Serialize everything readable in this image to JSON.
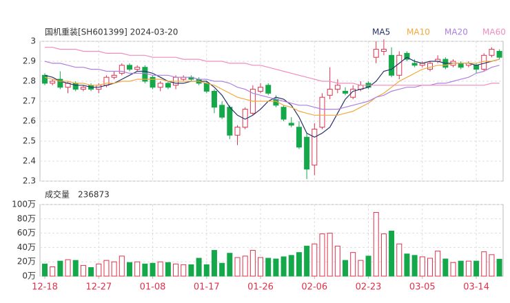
{
  "chart_data": [
    {
      "type": "candlestick",
      "title": "国机重装[SH601399] 2024-03-20",
      "up_color": "#e0314a",
      "down_color": "#14a84b",
      "open": [
        2.83,
        2.79,
        2.81,
        2.77,
        2.79,
        2.76,
        2.78,
        2.76,
        2.78,
        2.82,
        2.84,
        2.88,
        2.86,
        2.87,
        2.82,
        2.77,
        2.79,
        2.78,
        2.81,
        2.82,
        2.81,
        2.79,
        2.75,
        2.68,
        2.67,
        2.53,
        2.57,
        2.64,
        2.75,
        2.78,
        2.71,
        2.67,
        2.59,
        2.57,
        2.52,
        2.38,
        2.57,
        2.73,
        2.76,
        2.75,
        2.72,
        2.76,
        2.79,
        2.92,
        2.95,
        2.93,
        2.83,
        2.94,
        2.89,
        2.88,
        2.86,
        2.9,
        2.91,
        2.88,
        2.89,
        2.88,
        2.88,
        2.86,
        2.93,
        2.95
      ],
      "high": [
        2.84,
        2.81,
        2.85,
        2.8,
        2.8,
        2.78,
        2.79,
        2.79,
        2.83,
        2.85,
        2.89,
        2.89,
        2.88,
        2.88,
        2.83,
        2.8,
        2.8,
        2.83,
        2.83,
        2.83,
        2.82,
        2.8,
        2.76,
        2.7,
        2.68,
        2.58,
        2.67,
        2.78,
        2.79,
        2.79,
        2.73,
        2.68,
        2.62,
        2.6,
        2.54,
        2.59,
        2.74,
        2.87,
        2.81,
        2.77,
        2.78,
        2.8,
        2.8,
        3.0,
        3.01,
        2.97,
        2.95,
        2.95,
        2.91,
        2.9,
        2.9,
        2.93,
        2.92,
        2.91,
        2.9,
        2.9,
        2.89,
        2.94,
        2.97,
        2.96
      ],
      "low": [
        2.78,
        2.78,
        2.76,
        2.74,
        2.75,
        2.75,
        2.75,
        2.74,
        2.77,
        2.81,
        2.83,
        2.85,
        2.85,
        2.79,
        2.76,
        2.75,
        2.76,
        2.76,
        2.8,
        2.8,
        2.78,
        2.74,
        2.64,
        2.61,
        2.51,
        2.48,
        2.56,
        2.63,
        2.74,
        2.73,
        2.67,
        2.6,
        2.57,
        2.46,
        2.31,
        2.33,
        2.56,
        2.71,
        2.74,
        2.73,
        2.71,
        2.75,
        2.76,
        2.89,
        2.93,
        2.82,
        2.81,
        2.9,
        2.87,
        2.87,
        2.85,
        2.89,
        2.86,
        2.87,
        2.86,
        2.87,
        2.84,
        2.85,
        2.92,
        2.91
      ],
      "close": [
        2.79,
        2.8,
        2.77,
        2.79,
        2.76,
        2.77,
        2.76,
        2.78,
        2.82,
        2.83,
        2.88,
        2.86,
        2.87,
        2.8,
        2.77,
        2.79,
        2.77,
        2.82,
        2.82,
        2.81,
        2.79,
        2.75,
        2.67,
        2.62,
        2.53,
        2.57,
        2.66,
        2.76,
        2.77,
        2.74,
        2.68,
        2.61,
        2.58,
        2.47,
        2.36,
        2.56,
        2.72,
        2.76,
        2.78,
        2.74,
        2.76,
        2.78,
        2.77,
        2.96,
        2.96,
        2.83,
        2.93,
        2.91,
        2.88,
        2.89,
        2.89,
        2.91,
        2.87,
        2.9,
        2.87,
        2.89,
        2.86,
        2.93,
        2.96,
        2.92
      ],
      "series": [
        {
          "name": "MA5",
          "color": "#27306b",
          "values": [
            2.83,
            2.82,
            2.8,
            2.79,
            2.78,
            2.78,
            2.77,
            2.77,
            2.78,
            2.79,
            2.81,
            2.83,
            2.85,
            2.85,
            2.84,
            2.82,
            2.8,
            2.79,
            2.79,
            2.8,
            2.8,
            2.8,
            2.77,
            2.73,
            2.67,
            2.63,
            2.61,
            2.63,
            2.66,
            2.7,
            2.72,
            2.71,
            2.68,
            2.62,
            2.54,
            2.52,
            2.54,
            2.57,
            2.64,
            2.71,
            2.75,
            2.76,
            2.77,
            2.8,
            2.85,
            2.86,
            2.89,
            2.92,
            2.9,
            2.89,
            2.9,
            2.9,
            2.89,
            2.89,
            2.89,
            2.89,
            2.88,
            2.89,
            2.9,
            2.91
          ]
        },
        {
          "name": "MA10",
          "color": "#f2a93b",
          "values": [
            2.82,
            2.81,
            2.8,
            2.8,
            2.79,
            2.79,
            2.78,
            2.78,
            2.79,
            2.79,
            2.8,
            2.8,
            2.81,
            2.81,
            2.81,
            2.81,
            2.8,
            2.8,
            2.8,
            2.8,
            2.8,
            2.79,
            2.78,
            2.76,
            2.74,
            2.72,
            2.71,
            2.7,
            2.7,
            2.7,
            2.7,
            2.68,
            2.67,
            2.65,
            2.64,
            2.63,
            2.63,
            2.63,
            2.63,
            2.64,
            2.65,
            2.67,
            2.69,
            2.72,
            2.74,
            2.77,
            2.8,
            2.82,
            2.84,
            2.86,
            2.87,
            2.88,
            2.88,
            2.89,
            2.89,
            2.89,
            2.89,
            2.9,
            2.9,
            2.91
          ]
        },
        {
          "name": "MA20",
          "color": "#ad7fe0",
          "values": [
            2.9,
            2.89,
            2.89,
            2.88,
            2.87,
            2.87,
            2.86,
            2.86,
            2.85,
            2.85,
            2.85,
            2.84,
            2.84,
            2.84,
            2.83,
            2.83,
            2.83,
            2.82,
            2.82,
            2.82,
            2.81,
            2.81,
            2.8,
            2.8,
            2.79,
            2.77,
            2.76,
            2.74,
            2.73,
            2.72,
            2.71,
            2.7,
            2.69,
            2.68,
            2.68,
            2.67,
            2.66,
            2.66,
            2.66,
            2.67,
            2.68,
            2.69,
            2.7,
            2.72,
            2.73,
            2.75,
            2.76,
            2.77,
            2.77,
            2.78,
            2.78,
            2.79,
            2.79,
            2.8,
            2.81,
            2.82,
            2.84,
            2.85,
            2.87,
            2.88
          ]
        },
        {
          "name": "MA60",
          "color": "#f08cbf",
          "values": [
            2.97,
            2.97,
            2.96,
            2.96,
            2.96,
            2.95,
            2.95,
            2.95,
            2.94,
            2.94,
            2.94,
            2.93,
            2.93,
            2.93,
            2.92,
            2.92,
            2.92,
            2.92,
            2.91,
            2.91,
            2.91,
            2.9,
            2.9,
            2.9,
            2.89,
            2.89,
            2.89,
            2.88,
            2.88,
            2.87,
            2.86,
            2.85,
            2.84,
            2.83,
            2.82,
            2.81,
            2.8,
            2.8,
            2.79,
            2.79,
            2.79,
            2.78,
            2.78,
            2.78,
            2.78,
            2.78,
            2.78,
            2.78,
            2.78,
            2.78,
            2.78,
            2.78,
            2.78,
            2.78,
            2.78,
            2.78,
            2.78,
            2.78,
            2.79,
            2.79
          ]
        }
      ],
      "ylim": [
        2.3,
        3.0
      ],
      "yticks": [
        3,
        2.9,
        2.8,
        2.7,
        2.6,
        2.5,
        2.4,
        2.3
      ],
      "grid": true
    },
    {
      "type": "bar",
      "title": "成交量",
      "total": 236873,
      "categories": [
        "12-18",
        null,
        null,
        null,
        null,
        null,
        null,
        "12-27",
        null,
        null,
        null,
        null,
        null,
        null,
        "01-08",
        null,
        null,
        null,
        null,
        null,
        null,
        "01-17",
        null,
        null,
        null,
        null,
        null,
        null,
        "01-26",
        null,
        null,
        null,
        null,
        null,
        null,
        "02-06",
        null,
        null,
        null,
        null,
        null,
        null,
        "02-23",
        null,
        null,
        null,
        null,
        null,
        null,
        "03-05",
        null,
        null,
        null,
        null,
        null,
        null,
        "03-14",
        null,
        null,
        null
      ],
      "values": [
        17,
        13,
        21,
        23,
        22,
        15,
        12,
        17,
        22,
        20,
        28,
        19,
        20,
        17,
        18,
        20,
        19,
        17,
        16,
        16,
        25,
        16,
        36,
        18,
        32,
        26,
        28,
        36,
        26,
        25,
        24,
        27,
        29,
        33,
        42,
        45,
        59,
        60,
        42,
        22,
        33,
        22,
        28,
        89,
        59,
        63,
        45,
        31,
        29,
        27,
        25,
        35,
        24,
        19,
        21,
        21,
        21,
        34,
        30,
        23.69
      ],
      "ylim": [
        0,
        100
      ],
      "yticks": [
        {
          "value": 100,
          "label": "100万"
        },
        {
          "value": 80,
          "label": "80万"
        },
        {
          "value": 60,
          "label": "60万"
        },
        {
          "value": 40,
          "label": "40万"
        },
        {
          "value": 20,
          "label": "20万"
        },
        {
          "value": 0,
          "label": "0万"
        }
      ],
      "grid": true
    }
  ]
}
